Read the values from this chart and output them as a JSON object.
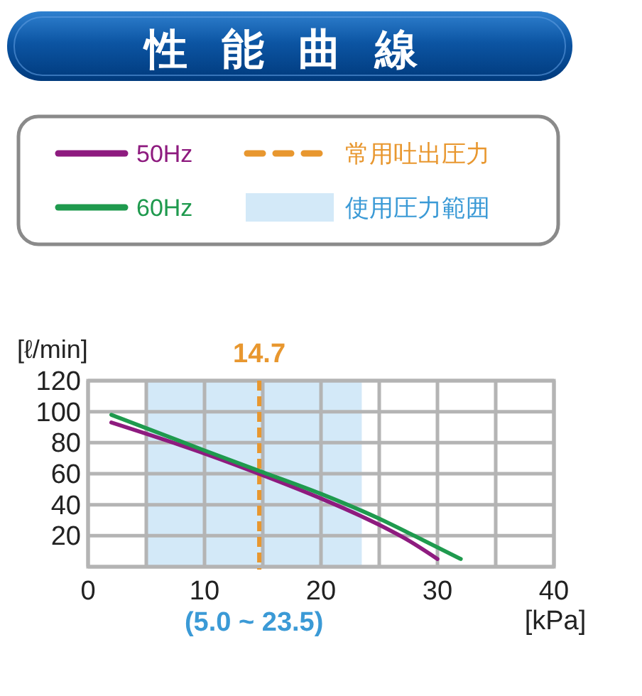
{
  "chart_data": {
    "type": "line",
    "title": "性能曲線",
    "xlabel": "[kPa]",
    "ylabel": "[ℓ/min]",
    "series": [
      {
        "name": "50Hz",
        "color": "#8e1b7f",
        "x": [
          2,
          10,
          15,
          20,
          25,
          27.5,
          30
        ],
        "values": [
          93,
          73,
          59,
          44,
          27,
          17,
          5
        ]
      },
      {
        "name": "60Hz",
        "color": "#1f9a4e",
        "x": [
          2,
          10,
          15,
          20,
          25,
          28,
          32
        ],
        "values": [
          98,
          75,
          61,
          47,
          31,
          20,
          5
        ]
      }
    ],
    "xlim": [
      0,
      40
    ],
    "xticks": [
      0,
      {
        "value": 5,
        "label": null
      },
      10,
      {
        "value": 15,
        "label": null
      },
      20,
      {
        "value": 25,
        "label": null
      },
      30,
      {
        "value": 35,
        "label": null
      },
      40
    ],
    "ylim": [
      0,
      120
    ],
    "yticks": [
      {
        "value": 0,
        "label": null
      },
      20,
      40,
      60,
      80,
      100,
      120
    ],
    "grid": true,
    "legend": "top",
    "ref_lines": [
      {
        "axis": "x",
        "value": 14.7,
        "label": "常用吐出圧力",
        "color": "#e8972f",
        "line_style": "dashed"
      }
    ],
    "bands": [
      {
        "axis": "x",
        "from": 5.0,
        "to": 23.5,
        "label": "使用圧力範囲",
        "color": "#d3e9f8"
      }
    ],
    "annotations": [
      "14.7",
      "(5.0 ~ 23.5)"
    ]
  }
}
